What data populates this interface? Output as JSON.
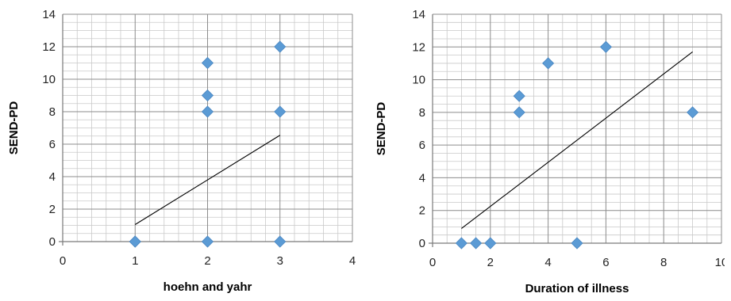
{
  "chart_data": [
    {
      "type": "scatter",
      "xlabel": "hoehn and yahr",
      "ylabel": "SEND-PD",
      "xlim": [
        0,
        4
      ],
      "ylim": [
        0,
        14
      ],
      "xticks": [
        0,
        1,
        2,
        3,
        4
      ],
      "yticks": [
        0,
        2,
        4,
        6,
        8,
        10,
        12,
        14
      ],
      "x_major_step": 1,
      "x_minor_step": 0.2,
      "y_minor_step": 0.5,
      "grid": true,
      "legend": "none",
      "marker": "diamond",
      "marker_color": "#5b9bd5",
      "series": [
        {
          "x": [
            1,
            1,
            2,
            2,
            2,
            2,
            3,
            3,
            3
          ],
          "y": [
            0,
            0,
            0,
            8,
            9,
            11,
            0,
            8,
            12
          ]
        }
      ],
      "trendline": {
        "x": [
          1,
          3
        ],
        "y": [
          1.05,
          6.55
        ]
      }
    },
    {
      "type": "scatter",
      "xlabel": "Duration of illness",
      "ylabel": "SEND-PD",
      "xlim": [
        0,
        10
      ],
      "ylim": [
        0,
        14
      ],
      "xticks": [
        0,
        2,
        4,
        6,
        8,
        10
      ],
      "yticks": [
        0,
        2,
        4,
        6,
        8,
        10,
        12,
        14
      ],
      "x_major_step": 2,
      "x_minor_step": 0.5,
      "y_minor_step": 0.5,
      "grid": true,
      "legend": "none",
      "marker": "diamond",
      "marker_color": "#5b9bd5",
      "series": [
        {
          "x": [
            1,
            1.5,
            2,
            3,
            3,
            4,
            5,
            6,
            9
          ],
          "y": [
            0,
            0,
            0,
            8,
            9,
            11,
            0,
            12,
            8
          ]
        }
      ],
      "trendline": {
        "x": [
          1,
          9
        ],
        "y": [
          0.9,
          11.7
        ]
      }
    }
  ]
}
